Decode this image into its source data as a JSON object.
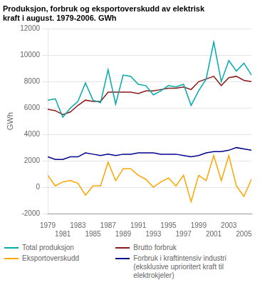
{
  "chart_data": {
    "type": "line",
    "title": "Produksjon, forbruk og eksportoverskudd av elektrisk\nkraft i august. 1979-2006. GWh",
    "ylabel": "GWh",
    "x": [
      1979,
      1980,
      1981,
      1982,
      1983,
      1984,
      1985,
      1986,
      1987,
      1988,
      1989,
      1990,
      1991,
      1992,
      1993,
      1994,
      1995,
      1996,
      1997,
      1998,
      1999,
      2000,
      2001,
      2002,
      2003,
      2004,
      2005,
      2006
    ],
    "series": [
      {
        "name": "Total produksjon",
        "color": "#00AAAA",
        "values": [
          6600,
          6700,
          5300,
          6000,
          6500,
          7900,
          6600,
          6400,
          8900,
          6300,
          8500,
          8400,
          7800,
          7700,
          7000,
          7300,
          7700,
          7600,
          7800,
          6200,
          7300,
          8200,
          11000,
          8000,
          9600,
          8800,
          9400,
          8500
        ]
      },
      {
        "name": "Eksportoverskudd",
        "color": "#FFA500",
        "values": [
          900,
          100,
          400,
          500,
          300,
          -600,
          100,
          100,
          1900,
          500,
          1400,
          1400,
          900,
          600,
          0,
          400,
          700,
          100,
          900,
          -1100,
          900,
          500,
          2400,
          500,
          2400,
          100,
          -700,
          600
        ]
      },
      {
        "name": "Brutto forbruk",
        "color": "#8B1A1A",
        "values": [
          5900,
          5800,
          5500,
          5700,
          6200,
          6600,
          6500,
          6500,
          7200,
          7200,
          7200,
          7200,
          7100,
          7300,
          7300,
          7400,
          7500,
          7500,
          7600,
          7400,
          8000,
          8200,
          8400,
          7700,
          8300,
          8400,
          8100,
          8000
        ]
      },
      {
        "name": "Forbruk i kraftintensiv industri\n(eksklusive uprioritert kraft til\nelektrokjeler)",
        "color": "#00008B",
        "values": [
          2300,
          2100,
          2100,
          2300,
          2300,
          2600,
          2500,
          2400,
          2500,
          2400,
          2500,
          2500,
          2600,
          2600,
          2600,
          2500,
          2500,
          2500,
          2400,
          2300,
          2400,
          2600,
          2700,
          2700,
          2800,
          3000,
          2900,
          2800
        ]
      }
    ],
    "xlim": [
      1979,
      2006
    ],
    "xticks": [
      1979,
      1981,
      1983,
      1985,
      1987,
      1989,
      1991,
      1993,
      1995,
      1997,
      1999,
      2001,
      2003,
      2005
    ],
    "ylim": [
      -2000,
      12000
    ],
    "yticks": [
      -2000,
      0,
      2000,
      4000,
      6000,
      8000,
      10000,
      12000
    ],
    "grid": true,
    "legend": "bottom"
  }
}
